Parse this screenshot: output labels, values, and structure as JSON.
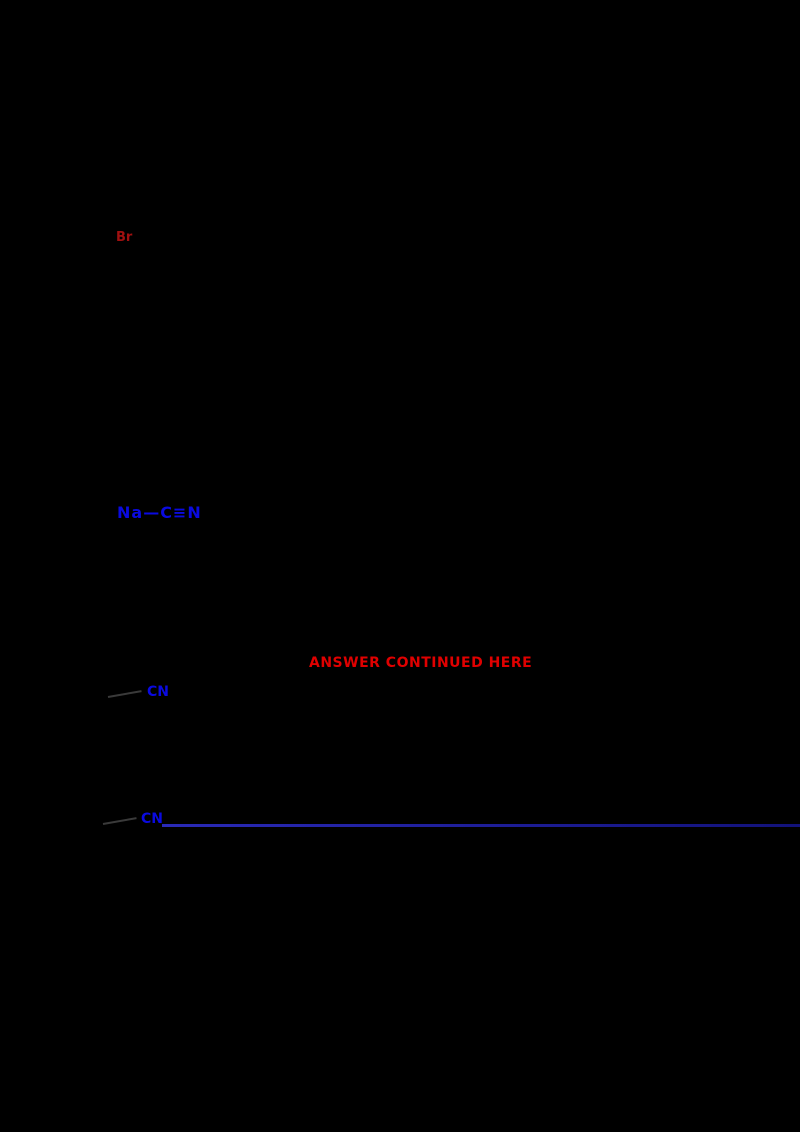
{
  "page": {
    "background_color": "#000000"
  },
  "labels": {
    "br": {
      "text": "Br",
      "color": "#a01010"
    },
    "reagent": {
      "text": "Na—C≡N",
      "color": "#0a0ae0"
    },
    "note": {
      "text": "ANSWER CONTINUED HERE",
      "color": "#e00000"
    },
    "cn1": {
      "text": "CN",
      "color": "#0a0ae0"
    },
    "cn2": {
      "text": "CN",
      "color": "#0a0ae0"
    }
  },
  "lines": {
    "bond_tick_color": "#3a3a3a",
    "long_line_color": "#1b1b9e"
  }
}
